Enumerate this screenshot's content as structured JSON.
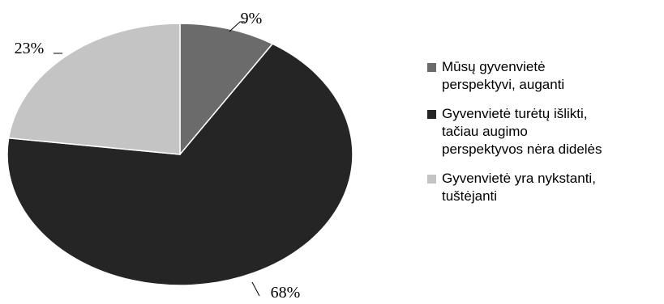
{
  "chart_data": {
    "type": "pie",
    "title": "",
    "series": [
      {
        "name": "Mūsų gyvenvietė perspektyvi, auganti",
        "value": 9,
        "label": "9%",
        "color": "#6b6b6b"
      },
      {
        "name": "Gyvenvietė turėtų išlikti, tačiau augimo perspektyvos nėra didelės",
        "value": 68,
        "label": "68%",
        "color": "#252525"
      },
      {
        "name": "Gyvenvietė yra nykstanti, tuštėjanti",
        "value": 23,
        "label": "23%",
        "color": "#c4c4c4"
      }
    ],
    "legend_position": "right"
  },
  "legend": [
    {
      "text": "Mūsų gyvenvietė\nperspektyvi, auganti"
    },
    {
      "text": "Gyvenvietė turėtų išlikti,\ntačiau augimo\nperspektyvos nėra didelės"
    },
    {
      "text": "Gyvenvietė yra nykstanti,\ntuštėjanti"
    }
  ]
}
